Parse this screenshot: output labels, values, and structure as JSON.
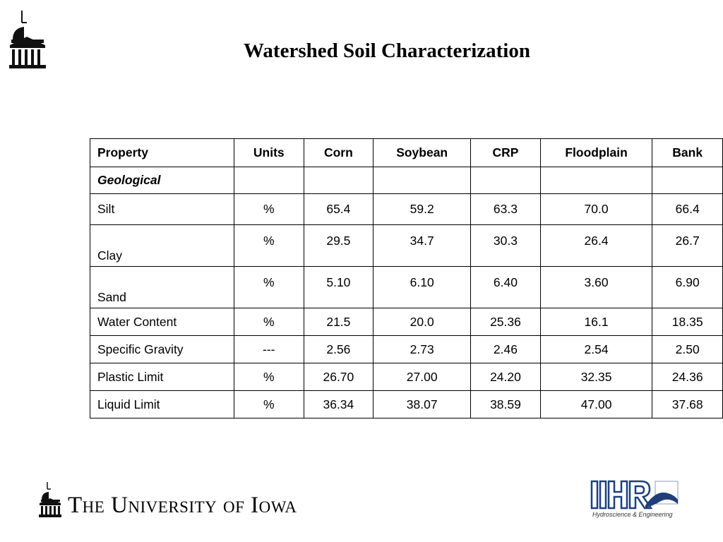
{
  "title": "Watershed Soil Characterization",
  "footer": {
    "university": "The University of Iowa",
    "ihr_logo_text": "IIHR",
    "ihr_logo_tagline": "Hydroscience & Engineering"
  },
  "table": {
    "headers": [
      "Property",
      "Units",
      "Corn",
      "Soybean",
      "CRP",
      "Floodplain",
      "Bank"
    ],
    "section_label": "Geological",
    "rows": [
      {
        "property": "Silt",
        "units": "%",
        "values": [
          "65.4",
          "59.2",
          "63.3",
          "70.0",
          "66.4"
        ]
      },
      {
        "property": "Clay",
        "units": "%",
        "values": [
          "29.5",
          "34.7",
          "30.3",
          "26.4",
          "26.7"
        ]
      },
      {
        "property": "Sand",
        "units": "%",
        "values": [
          "5.10",
          "6.10",
          "6.40",
          "3.60",
          "6.90"
        ]
      },
      {
        "property": "Water Content",
        "units": "%",
        "values": [
          "21.5",
          "20.0",
          "25.36",
          "16.1",
          "18.35"
        ]
      },
      {
        "property": "Specific Gravity",
        "units": "---",
        "values": [
          "2.56",
          "2.73",
          "2.46",
          "2.54",
          "2.50"
        ]
      },
      {
        "property": "Plastic Limit",
        "units": "%",
        "values": [
          "26.70",
          "27.00",
          "24.20",
          "32.35",
          "24.36"
        ]
      },
      {
        "property": "Liquid Limit",
        "units": "%",
        "values": [
          "36.34",
          "38.07",
          "38.59",
          "47.00",
          "37.68"
        ]
      }
    ]
  }
}
